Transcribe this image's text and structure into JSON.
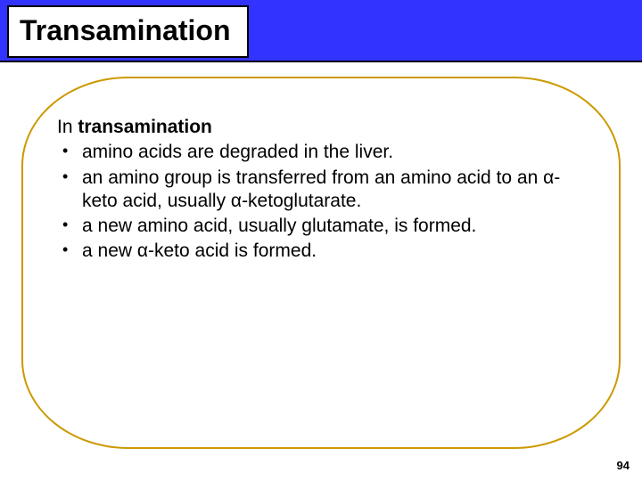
{
  "slide": {
    "title": "Transamination",
    "intro_prefix": "In ",
    "intro_bold": "transamination",
    "bullets": [
      "amino acids are degraded in the liver.",
      "an amino group is transferred from an amino acid to an α-keto acid, usually α-ketoglutarate.",
      "a new amino acid, usually glutamate, is formed.",
      "a new α-keto acid is formed."
    ],
    "page_number": "94",
    "colors": {
      "header_bg": "#3333ff",
      "oval_border": "#cc9900",
      "text": "#000000",
      "background": "#ffffff"
    }
  }
}
